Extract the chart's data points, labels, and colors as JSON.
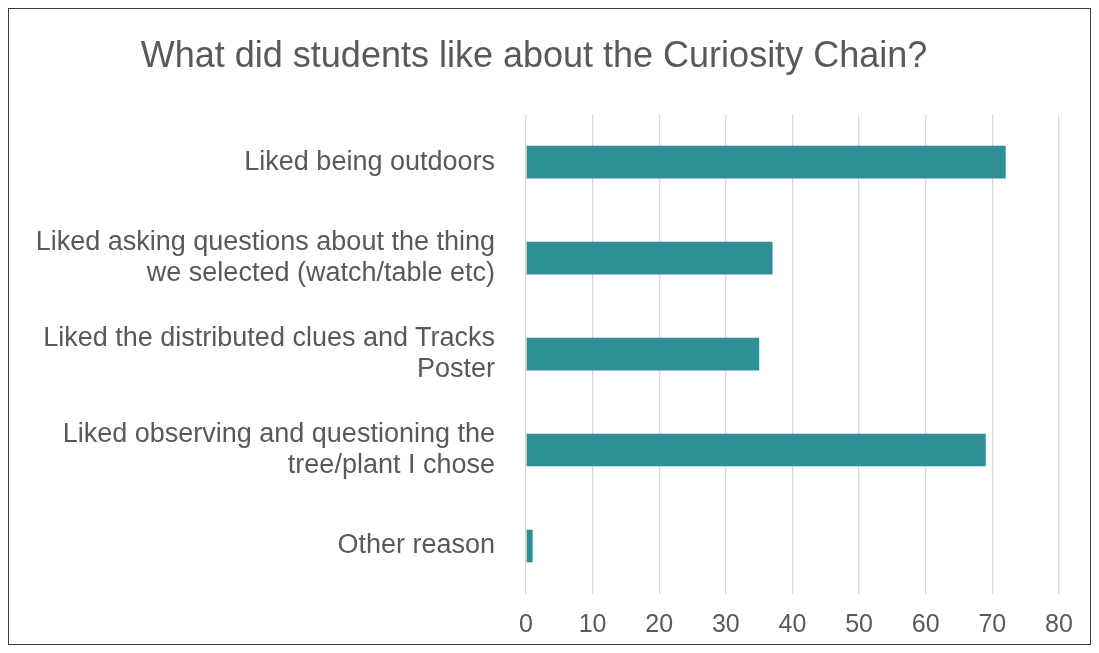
{
  "chart_data": {
    "type": "bar",
    "orientation": "horizontal",
    "title": "What did students like about the Curiosity Chain?",
    "categories": [
      "Liked being outdoors",
      "Liked asking questions about the thing we selected (watch/table etc)",
      "Liked the distributed clues and Tracks Poster",
      "Liked observing and questioning the tree/plant I chose",
      "Other reason"
    ],
    "values": [
      72,
      37,
      35,
      69,
      1
    ],
    "color": "#2e8f96",
    "xlim": [
      0,
      80
    ],
    "xticks": [
      0,
      10,
      20,
      30,
      40,
      50,
      60,
      70,
      80
    ],
    "grid": "x"
  }
}
